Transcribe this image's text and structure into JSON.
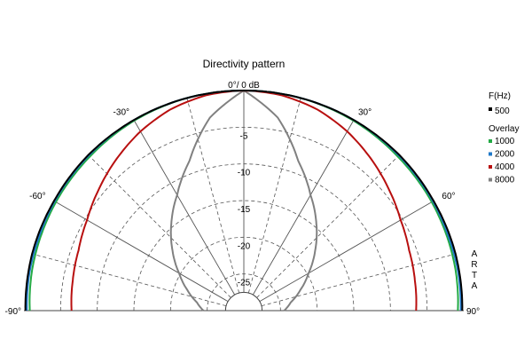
{
  "chart_data": {
    "type": "polar",
    "title": "Directivity pattern",
    "top_label": "0°/ 0 dB",
    "radial_unit": "dB",
    "radial_range": [
      -30,
      0
    ],
    "radial_ticks": [
      "-5",
      "-10",
      "-15",
      "-20",
      "-25"
    ],
    "radial_tick_values": [
      -5,
      -10,
      -15,
      -20,
      -25
    ],
    "angle_range": [
      -90,
      90
    ],
    "angle_ticks": [
      "-90°",
      "-60°",
      "-30°",
      "30°",
      "60°",
      "90°"
    ],
    "angle_tick_values": [
      -90,
      -60,
      -30,
      30,
      60,
      90
    ],
    "grid": true,
    "legend_title": "F(Hz)",
    "overlay_label": "Overlay",
    "brand_letters": [
      "A",
      "R",
      "T",
      "A"
    ],
    "series": [
      {
        "name": "500",
        "color": "#000000",
        "angles": [
          -90,
          -75,
          -60,
          -45,
          -30,
          -15,
          0,
          15,
          30,
          45,
          60,
          75,
          90
        ],
        "values": [
          -0.2,
          -0.1,
          -0.1,
          0,
          0,
          0,
          0,
          0,
          0,
          0,
          -0.1,
          -0.1,
          -0.2
        ]
      },
      {
        "name": "1000",
        "color": "#22aa44",
        "angles": [
          -90,
          -80,
          -70,
          -60,
          -45,
          -30,
          -15,
          0,
          15,
          30,
          45,
          60,
          70,
          80,
          90
        ],
        "values": [
          -0.8,
          -0.6,
          -0.5,
          -0.4,
          -0.3,
          -0.1,
          0,
          0,
          0,
          -0.1,
          -0.3,
          -0.4,
          -0.5,
          -0.6,
          -0.8
        ]
      },
      {
        "name": "2000",
        "color": "#1f78c8",
        "angles": [
          -90,
          -80,
          -70,
          -60,
          -45,
          -30,
          -15,
          0,
          15,
          30,
          45,
          60,
          70,
          80,
          90
        ],
        "values": [
          -0.4,
          -0.3,
          -0.3,
          -0.2,
          -0.1,
          0,
          0,
          0,
          0,
          0,
          -0.1,
          -0.2,
          -0.3,
          -0.3,
          -0.4
        ]
      },
      {
        "name": "4000",
        "color": "#b80f0f",
        "angles": [
          -90,
          -80,
          -70,
          -60,
          -50,
          -40,
          -30,
          -20,
          -10,
          0,
          10,
          20,
          30,
          40,
          50,
          60,
          70,
          80,
          90
        ],
        "values": [
          -6.5,
          -6.3,
          -6.0,
          -5.3,
          -4.2,
          -3.0,
          -1.8,
          -0.8,
          -0.2,
          0,
          -0.2,
          -0.8,
          -1.8,
          -3.0,
          -4.2,
          -5.3,
          -6.0,
          -6.3,
          -6.5
        ]
      },
      {
        "name": "8000",
        "color": "#808080",
        "angles": [
          -90,
          -80,
          -70,
          -60,
          -50,
          -40,
          -30,
          -20,
          -10,
          0,
          10,
          20,
          30,
          40,
          50,
          60,
          70,
          80,
          90
        ],
        "values": [
          -24.5,
          -23.5,
          -21.8,
          -19.8,
          -17.3,
          -14.6,
          -11.8,
          -8.3,
          -3.3,
          0,
          -3.3,
          -8.3,
          -11.8,
          -14.6,
          -17.3,
          -19.8,
          -21.8,
          -23.5,
          -24.5
        ]
      }
    ]
  }
}
